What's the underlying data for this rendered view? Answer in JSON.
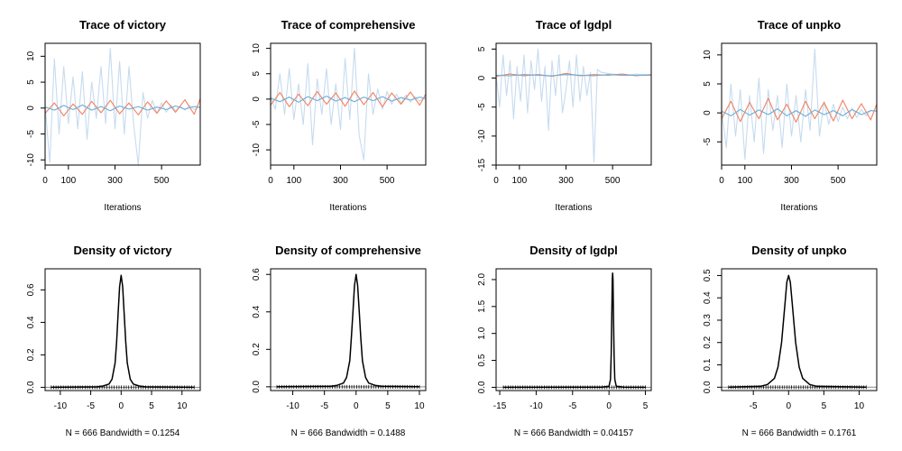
{
  "colors": {
    "light_chain": "#c6dbef",
    "mid_chain": "#6baed6",
    "warm_chain": "#f4805f",
    "density_line": "#000000",
    "baseline": "#888888"
  },
  "chart_data": [
    {
      "type": "line",
      "panel": "trace",
      "variable": "victory",
      "title": "Trace of victory",
      "xlabel": "Iterations",
      "ylabel": "",
      "xlim": [
        0,
        666
      ],
      "ylim": [
        -11,
        12.5
      ],
      "xticks": [
        0,
        100,
        300,
        500
      ],
      "yticks": [
        -10,
        -5,
        0,
        5,
        10
      ],
      "series": [
        {
          "color": "#c6dbef",
          "x": [
            0,
            20,
            40,
            60,
            80,
            100,
            120,
            140,
            160,
            180,
            200,
            220,
            240,
            260,
            280,
            300,
            320,
            340,
            360,
            380,
            400,
            420,
            440,
            460,
            480,
            500,
            520,
            540,
            560,
            580,
            600,
            620,
            640,
            660
          ],
          "y": [
            0.5,
            -10.5,
            9.5,
            -5,
            8,
            -3,
            6,
            -4,
            7,
            -6,
            5,
            -2,
            8,
            -3,
            11.5,
            -4,
            9,
            -5,
            8,
            -3,
            -11,
            3,
            -2,
            1.5,
            -1,
            1,
            -0.8,
            0.6,
            -0.5,
            0.4,
            -0.4,
            0.5,
            -0.3,
            0.2
          ]
        },
        {
          "color": "#f4805f",
          "x": [
            0,
            40,
            80,
            120,
            160,
            200,
            240,
            280,
            320,
            360,
            400,
            440,
            480,
            520,
            560,
            600,
            640,
            666
          ],
          "y": [
            -1,
            1,
            -1.5,
            0.8,
            -1.2,
            1.3,
            -0.9,
            1.5,
            -1.1,
            1,
            -1.3,
            1.2,
            -1,
            1.4,
            -0.8,
            1.6,
            -1.2,
            1.8
          ]
        },
        {
          "color": "#6baed6",
          "x": [
            0,
            40,
            80,
            120,
            160,
            200,
            240,
            280,
            320,
            360,
            400,
            440,
            480,
            520,
            560,
            600,
            640,
            666
          ],
          "y": [
            0.2,
            -0.4,
            0.5,
            -0.3,
            0.6,
            -0.4,
            0.3,
            -0.5,
            0.4,
            -0.2,
            0.3,
            -0.4,
            0.2,
            -0.3,
            0.4,
            -0.2,
            0.3,
            0.1
          ]
        }
      ]
    },
    {
      "type": "line",
      "panel": "trace",
      "variable": "comprehensive",
      "title": "Trace of comprehensive",
      "xlabel": "Iterations",
      "ylabel": "",
      "xlim": [
        0,
        666
      ],
      "ylim": [
        -13,
        11
      ],
      "xticks": [
        0,
        100,
        300,
        500
      ],
      "yticks": [
        -10,
        -5,
        0,
        5,
        10
      ],
      "series": [
        {
          "color": "#c6dbef",
          "x": [
            0,
            20,
            40,
            60,
            80,
            100,
            120,
            140,
            160,
            180,
            200,
            220,
            240,
            260,
            280,
            300,
            320,
            340,
            360,
            380,
            400,
            420,
            440,
            460,
            480,
            500,
            520,
            540,
            560,
            580,
            600,
            620,
            640,
            660
          ],
          "y": [
            0.5,
            -2,
            5,
            -3,
            6,
            -4,
            3,
            -5,
            7,
            -9,
            4,
            -3,
            6,
            -5,
            3,
            -6,
            8,
            -4,
            10,
            -7,
            -12,
            5,
            -3,
            2,
            -2,
            1.5,
            -1,
            1,
            -0.8,
            0.8,
            -0.6,
            0.5,
            -0.4,
            0.3
          ]
        },
        {
          "color": "#f4805f",
          "x": [
            0,
            40,
            80,
            120,
            160,
            200,
            240,
            280,
            320,
            360,
            400,
            440,
            480,
            520,
            560,
            600,
            640,
            666
          ],
          "y": [
            -1.2,
            1.3,
            -1.5,
            1,
            -1.3,
            1.5,
            -1,
            1.2,
            -1.4,
            1.6,
            -1.1,
            1.3,
            -1.5,
            1.2,
            -1,
            1.4,
            -1.2,
            1
          ]
        },
        {
          "color": "#6baed6",
          "x": [
            0,
            40,
            80,
            120,
            160,
            200,
            240,
            280,
            320,
            360,
            400,
            440,
            480,
            520,
            560,
            600,
            640,
            666
          ],
          "y": [
            0.2,
            -0.5,
            0.4,
            -0.6,
            0.5,
            -0.3,
            0.6,
            -0.4,
            0.3,
            -0.5,
            0.4,
            -0.3,
            0.5,
            -0.4,
            0.3,
            -0.2,
            0.4,
            0.1
          ]
        }
      ]
    },
    {
      "type": "line",
      "panel": "trace",
      "variable": "lgdpl",
      "title": "Trace of lgdpl",
      "xlabel": "Iterations",
      "ylabel": "",
      "xlim": [
        0,
        666
      ],
      "ylim": [
        -15,
        6
      ],
      "xticks": [
        0,
        100,
        300,
        500
      ],
      "yticks": [
        -15,
        -10,
        -5,
        0,
        5
      ],
      "series": [
        {
          "color": "#c6dbef",
          "x": [
            0,
            15,
            30,
            45,
            60,
            75,
            90,
            105,
            120,
            135,
            150,
            165,
            180,
            195,
            210,
            225,
            240,
            255,
            270,
            285,
            300,
            315,
            330,
            345,
            360,
            375,
            390,
            405,
            420,
            435,
            450,
            480,
            520,
            560,
            600,
            640,
            666
          ],
          "y": [
            0.5,
            -5,
            4,
            -3,
            3,
            -7,
            2,
            -4,
            4,
            -6,
            3,
            -2,
            5,
            -4,
            2,
            -9,
            3,
            -3,
            4,
            -6,
            -2,
            3,
            -5,
            4,
            -4,
            2,
            -3,
            1,
            -14.5,
            1.5,
            1,
            0.8,
            0.6,
            0.5,
            0.7,
            0.6,
            0.5
          ]
        },
        {
          "color": "#f4805f",
          "x": [
            0,
            60,
            120,
            180,
            240,
            300,
            360,
            420,
            480,
            540,
            600,
            666
          ],
          "y": [
            0.3,
            0.7,
            0.4,
            0.6,
            0.3,
            0.8,
            0.4,
            0.6,
            0.5,
            0.7,
            0.4,
            0.6
          ]
        },
        {
          "color": "#6baed6",
          "x": [
            0,
            60,
            120,
            180,
            240,
            300,
            360,
            420,
            480,
            540,
            600,
            666
          ],
          "y": [
            0.5,
            0.4,
            0.6,
            0.5,
            0.4,
            0.6,
            0.5,
            0.4,
            0.6,
            0.5,
            0.5,
            0.5
          ]
        }
      ]
    },
    {
      "type": "line",
      "panel": "trace",
      "variable": "unpko",
      "title": "Trace of unpko",
      "xlabel": "Iterations",
      "ylabel": "",
      "xlim": [
        0,
        666
      ],
      "ylim": [
        -9,
        12
      ],
      "xticks": [
        0,
        100,
        300,
        500
      ],
      "yticks": [
        -5,
        0,
        5,
        10
      ],
      "series": [
        {
          "color": "#c6dbef",
          "x": [
            0,
            20,
            40,
            60,
            80,
            100,
            120,
            140,
            160,
            180,
            200,
            220,
            240,
            260,
            280,
            300,
            320,
            340,
            360,
            380,
            400,
            420,
            440,
            460,
            480,
            500,
            520,
            540,
            560,
            580,
            600,
            620,
            640,
            660
          ],
          "y": [
            0.5,
            -6,
            5,
            -4,
            4,
            -8,
            3,
            -5,
            6,
            -7,
            4,
            -3,
            3,
            -6,
            5,
            -4,
            3,
            -5,
            4,
            -3,
            11,
            -4,
            2,
            -2,
            1.5,
            -1.5,
            1,
            -1,
            0.8,
            -0.8,
            0.6,
            -0.5,
            0.4,
            0.3
          ]
        },
        {
          "color": "#f4805f",
          "x": [
            0,
            40,
            80,
            120,
            160,
            200,
            240,
            280,
            320,
            360,
            400,
            440,
            480,
            520,
            560,
            600,
            640,
            666
          ],
          "y": [
            -1,
            2,
            -1.5,
            1.8,
            -1,
            2.5,
            -1.2,
            1.5,
            -1.6,
            2,
            -1,
            1.8,
            -1.4,
            2.2,
            -1,
            1.6,
            -1.2,
            1.5
          ]
        },
        {
          "color": "#6baed6",
          "x": [
            0,
            40,
            80,
            120,
            160,
            200,
            240,
            280,
            320,
            360,
            400,
            440,
            480,
            520,
            560,
            600,
            640,
            666
          ],
          "y": [
            0.3,
            -0.5,
            0.6,
            -0.4,
            0.5,
            -0.3,
            0.7,
            -0.5,
            0.4,
            -0.6,
            0.5,
            -0.3,
            0.4,
            -0.5,
            0.6,
            -0.3,
            0.4,
            0.3
          ]
        }
      ]
    },
    {
      "type": "line",
      "panel": "density",
      "variable": "victory",
      "title": "Density of victory",
      "xlabel": "N = 666   Bandwidth = 0.1254",
      "ylabel": "",
      "xlim": [
        -12.5,
        13
      ],
      "ylim": [
        -0.02,
        0.73
      ],
      "xticks": [
        -10,
        -5,
        0,
        5,
        10
      ],
      "yticks": [
        0.0,
        0.2,
        0.4,
        0.6
      ],
      "series": [
        {
          "color": "#000000",
          "x": [
            -11.5,
            -4,
            -3,
            -2,
            -1.5,
            -1,
            -0.75,
            -0.5,
            -0.25,
            0,
            0.25,
            0.5,
            0.75,
            1,
            1.5,
            2,
            3,
            4,
            12
          ],
          "y": [
            0,
            0.003,
            0.008,
            0.02,
            0.05,
            0.15,
            0.28,
            0.45,
            0.62,
            0.69,
            0.62,
            0.45,
            0.28,
            0.15,
            0.05,
            0.02,
            0.008,
            0.003,
            0
          ]
        }
      ]
    },
    {
      "type": "line",
      "panel": "density",
      "variable": "comprehensive",
      "title": "Density of comprehensive",
      "xlabel": "N = 666   Bandwidth = 0.1488",
      "ylabel": "",
      "xlim": [
        -13.5,
        11
      ],
      "ylim": [
        -0.02,
        0.63
      ],
      "xticks": [
        -10,
        -5,
        0,
        5,
        10
      ],
      "yticks": [
        0.0,
        0.2,
        0.4,
        0.6
      ],
      "series": [
        {
          "color": "#000000",
          "x": [
            -12.5,
            -4,
            -3,
            -2,
            -1.5,
            -1,
            -0.75,
            -0.5,
            -0.25,
            0,
            0.25,
            0.5,
            0.75,
            1,
            1.5,
            2,
            3,
            4,
            10
          ],
          "y": [
            0,
            0.003,
            0.008,
            0.02,
            0.05,
            0.14,
            0.26,
            0.4,
            0.54,
            0.6,
            0.54,
            0.4,
            0.26,
            0.14,
            0.05,
            0.02,
            0.008,
            0.003,
            0
          ]
        }
      ]
    },
    {
      "type": "line",
      "panel": "density",
      "variable": "lgdpl",
      "title": "Density of lgdpl",
      "xlabel": "N = 666   Bandwidth = 0.04157",
      "ylabel": "",
      "xlim": [
        -15.5,
        5.8
      ],
      "ylim": [
        -0.06,
        2.2
      ],
      "xticks": [
        -15,
        -10,
        -5,
        0,
        5
      ],
      "yticks": [
        0.0,
        0.5,
        1.0,
        1.5,
        2.0
      ],
      "series": [
        {
          "color": "#000000",
          "x": [
            -14.5,
            -1,
            0,
            0.2,
            0.3,
            0.4,
            0.45,
            0.5,
            0.55,
            0.6,
            0.7,
            0.8,
            1,
            2,
            5
          ],
          "y": [
            0,
            0.004,
            0.02,
            0.15,
            0.6,
            1.5,
            2.0,
            2.12,
            2.0,
            1.5,
            0.6,
            0.15,
            0.02,
            0.004,
            0
          ]
        }
      ]
    },
    {
      "type": "line",
      "panel": "density",
      "variable": "unpko",
      "title": "Density of unpko",
      "xlabel": "N = 666   Bandwidth = 0.1761",
      "ylabel": "",
      "xlim": [
        -9.5,
        12.5
      ],
      "ylim": [
        -0.015,
        0.53
      ],
      "xticks": [
        -5,
        0,
        5,
        10
      ],
      "yticks": [
        0.0,
        0.1,
        0.2,
        0.3,
        0.4,
        0.5
      ],
      "series": [
        {
          "color": "#000000",
          "x": [
            -8.5,
            -4,
            -3,
            -2,
            -1.5,
            -1,
            -0.5,
            -0.25,
            0,
            0.25,
            0.5,
            1,
            1.5,
            2,
            3,
            4,
            11
          ],
          "y": [
            0,
            0.004,
            0.012,
            0.04,
            0.09,
            0.2,
            0.38,
            0.47,
            0.5,
            0.47,
            0.38,
            0.2,
            0.09,
            0.04,
            0.012,
            0.004,
            0
          ]
        }
      ]
    }
  ]
}
